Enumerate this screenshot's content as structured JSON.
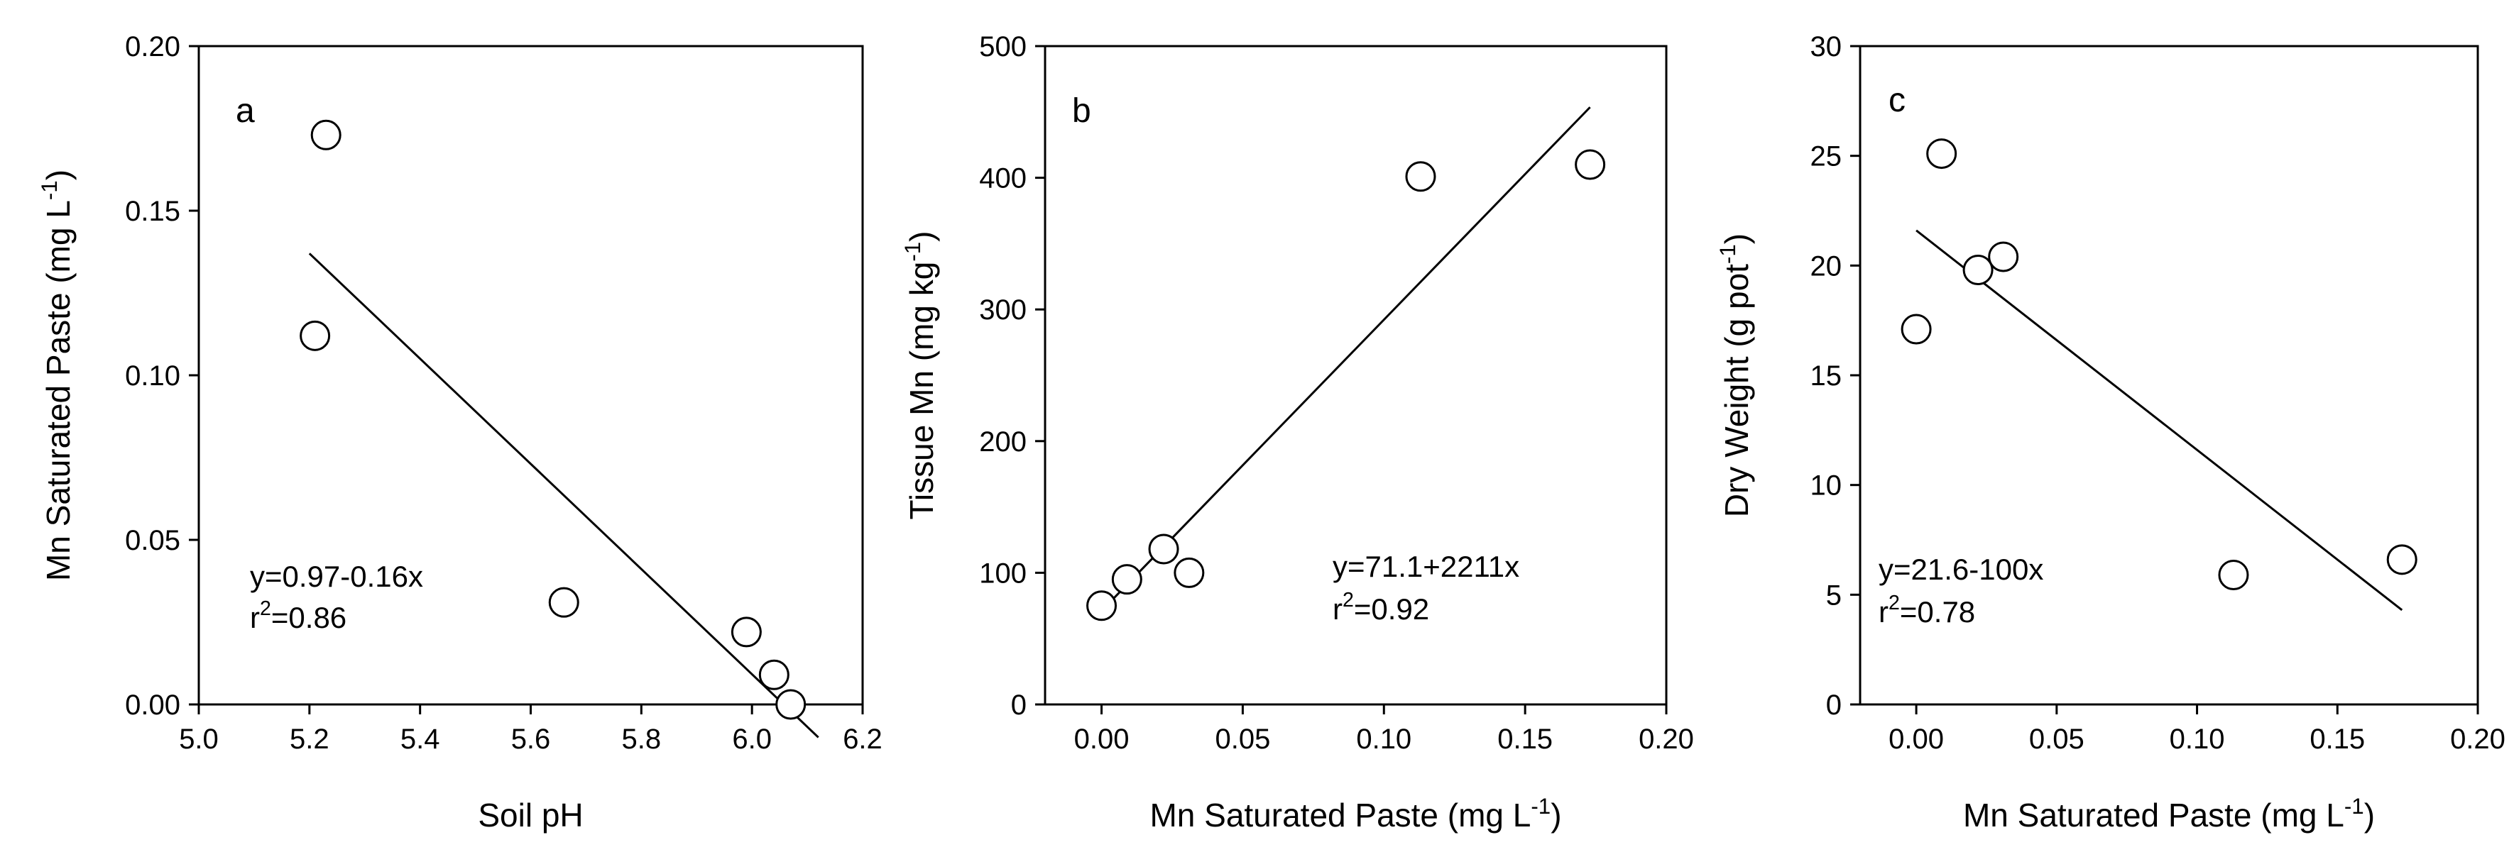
{
  "chart_data": [
    {
      "type": "scatter",
      "panel_label": "a",
      "xlabel": "Soil pH",
      "ylabel": {
        "main": "Mn Saturated Paste (mg L",
        "sup": "-1",
        "tail": ")"
      },
      "xlim": [
        5.0,
        6.2
      ],
      "ylim": [
        0.0,
        0.2
      ],
      "x_ticks": [
        "5.0",
        "5.2",
        "5.4",
        "5.6",
        "5.8",
        "6.0",
        "6.2"
      ],
      "y_ticks": [
        "0.00",
        "0.05",
        "0.10",
        "0.15",
        "0.20"
      ],
      "points": [
        {
          "x": 5.23,
          "y": 0.173
        },
        {
          "x": 5.21,
          "y": 0.112
        },
        {
          "x": 5.66,
          "y": 0.031
        },
        {
          "x": 5.99,
          "y": 0.022
        },
        {
          "x": 6.04,
          "y": 0.009
        },
        {
          "x": 6.07,
          "y": 0.0
        }
      ],
      "fit_line": [
        {
          "x": 5.2,
          "y": 0.137
        },
        {
          "x": 6.12,
          "y": -0.01
        }
      ],
      "equation": "y=0.97-0.16x",
      "r2": {
        "base": "r",
        "sup": "2",
        "value": "=0.86"
      },
      "grid": false
    },
    {
      "type": "scatter",
      "panel_label": "b",
      "xlabel": {
        "main": "Mn Saturated Paste (mg L",
        "sup": "-1",
        "tail": ")"
      },
      "ylabel": {
        "main": "Tissue Mn (mg kg",
        "sup": "-1",
        "tail": ")"
      },
      "xlim": [
        -0.02,
        0.2
      ],
      "ylim": [
        0,
        500
      ],
      "x_ticks": [
        "0.00",
        "0.05",
        "0.10",
        "0.15",
        "0.20"
      ],
      "y_ticks": [
        "0",
        "100",
        "200",
        "300",
        "400",
        "500"
      ],
      "points": [
        {
          "x": 0.0,
          "y": 75
        },
        {
          "x": 0.009,
          "y": 95
        },
        {
          "x": 0.022,
          "y": 118
        },
        {
          "x": 0.031,
          "y": 100
        },
        {
          "x": 0.113,
          "y": 401
        },
        {
          "x": 0.173,
          "y": 410
        }
      ],
      "fit_line": [
        {
          "x": 0.0,
          "y": 71.1
        },
        {
          "x": 0.173,
          "y": 453.6
        }
      ],
      "equation": "y=71.1+2211x",
      "r2": {
        "base": "r",
        "sup": "2",
        "value": "=0.92"
      },
      "grid": false
    },
    {
      "type": "scatter",
      "panel_label": "c",
      "xlabel": {
        "main": "Mn Saturated Paste (mg L",
        "sup": "-1",
        "tail": ")"
      },
      "ylabel": {
        "main": "Dry Weight (g pot",
        "sup": "-1",
        "tail": ")"
      },
      "xlim": [
        -0.02,
        0.2
      ],
      "ylim": [
        0,
        30
      ],
      "x_ticks": [
        "0.00",
        "0.05",
        "0.10",
        "0.15",
        "0.20"
      ],
      "y_ticks": [
        "0",
        "5",
        "10",
        "15",
        "20",
        "25",
        "30"
      ],
      "points": [
        {
          "x": 0.0,
          "y": 17.1
        },
        {
          "x": 0.009,
          "y": 25.1
        },
        {
          "x": 0.022,
          "y": 19.8
        },
        {
          "x": 0.031,
          "y": 20.4
        },
        {
          "x": 0.113,
          "y": 5.9
        },
        {
          "x": 0.173,
          "y": 6.6
        }
      ],
      "fit_line": [
        {
          "x": 0.0,
          "y": 21.6
        },
        {
          "x": 0.173,
          "y": 4.3
        }
      ],
      "equation": "y=21.6-100x",
      "r2": {
        "base": "r",
        "sup": "2",
        "value": "=0.78"
      },
      "grid": false
    }
  ]
}
